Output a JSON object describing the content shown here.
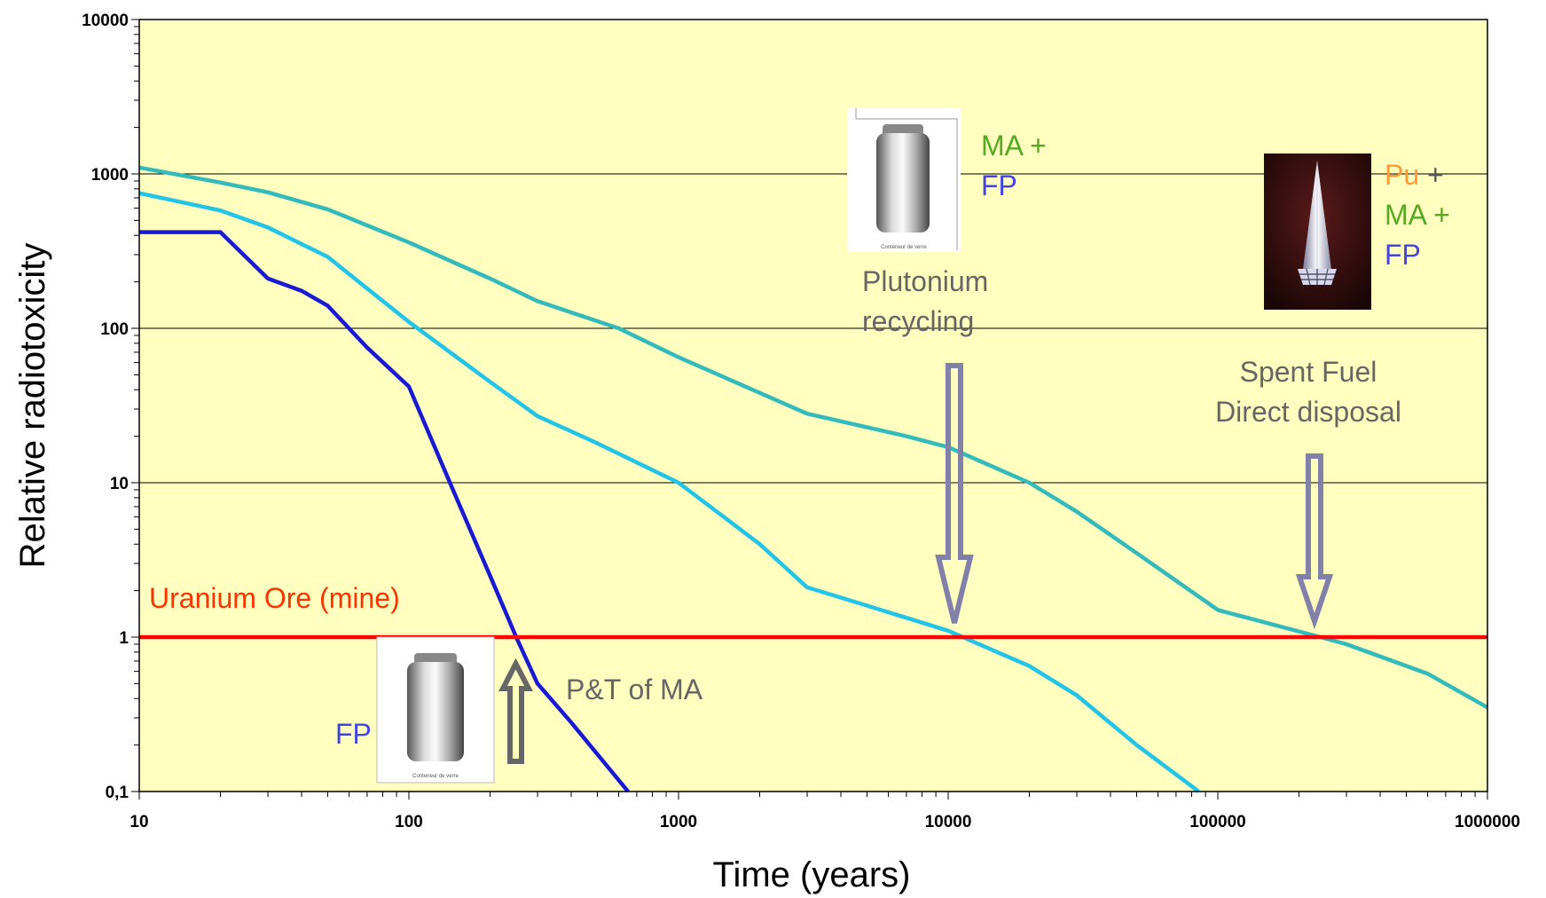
{
  "chart_data": {
    "type": "line",
    "title": "",
    "xlabel": "Time  (years)",
    "ylabel": "Relative radiotoxicity",
    "x_scale": "log",
    "y_scale": "log",
    "xlim": [
      10,
      1000000
    ],
    "ylim": [
      0.1,
      10000
    ],
    "x_ticks": [
      10,
      100,
      1000,
      10000,
      100000,
      1000000
    ],
    "x_tick_labels": [
      "10",
      "100",
      "1000",
      "10000",
      "100000",
      "1000000"
    ],
    "y_ticks": [
      0.1,
      1,
      10,
      100,
      1000,
      10000
    ],
    "y_tick_labels": [
      "0,1",
      "1",
      "10",
      "100",
      "1000",
      "10000"
    ],
    "grid": "horizontal major gridlines",
    "plot_background": "#FFFFC0",
    "series": [
      {
        "name": "Spent Fuel Direct disposal",
        "color": "#33BBBB",
        "points": [
          [
            10,
            1100
          ],
          [
            20,
            880
          ],
          [
            30,
            760
          ],
          [
            50,
            590
          ],
          [
            100,
            360
          ],
          [
            200,
            210
          ],
          [
            300,
            150
          ],
          [
            600,
            100
          ],
          [
            1000,
            65
          ],
          [
            3000,
            28
          ],
          [
            7000,
            20
          ],
          [
            10000,
            17
          ],
          [
            20000,
            10
          ],
          [
            30000,
            6.5
          ],
          [
            50000,
            3.5
          ],
          [
            100000,
            1.5
          ],
          [
            240000,
            1.0
          ],
          [
            300000,
            0.9
          ],
          [
            600000,
            0.58
          ],
          [
            1000000,
            0.35
          ]
        ]
      },
      {
        "name": "Plutonium recycling",
        "color": "#22C4E8",
        "points": [
          [
            10,
            750
          ],
          [
            20,
            580
          ],
          [
            30,
            450
          ],
          [
            50,
            290
          ],
          [
            100,
            110
          ],
          [
            200,
            45
          ],
          [
            300,
            27
          ],
          [
            500,
            18
          ],
          [
            1000,
            10
          ],
          [
            2000,
            4
          ],
          [
            3000,
            2.1
          ],
          [
            5000,
            1.6
          ],
          [
            10000,
            1.1
          ],
          [
            20000,
            0.65
          ],
          [
            30000,
            0.42
          ],
          [
            50000,
            0.2
          ],
          [
            85000,
            0.1
          ]
        ]
      },
      {
        "name": "P&T of MA",
        "color": "#1A1AD2",
        "points": [
          [
            10,
            420
          ],
          [
            20,
            420
          ],
          [
            30,
            210
          ],
          [
            40,
            175
          ],
          [
            50,
            140
          ],
          [
            70,
            75
          ],
          [
            100,
            42
          ],
          [
            150,
            8
          ],
          [
            200,
            2.5
          ],
          [
            250,
            1.0
          ],
          [
            300,
            0.5
          ],
          [
            400,
            0.28
          ],
          [
            650,
            0.1
          ]
        ]
      },
      {
        "name": "Uranium Ore (mine)",
        "color": "#FF0000",
        "points": [
          [
            10,
            1
          ],
          [
            1000000,
            1
          ]
        ]
      }
    ],
    "annotations": [
      {
        "text": "Uranium Ore (mine)",
        "color": "#FF3300"
      },
      {
        "text": "P&T of MA",
        "color": "#666666"
      },
      {
        "text": "Plutonium",
        "color": "#666666"
      },
      {
        "text": "recycling",
        "color": "#666666"
      },
      {
        "text": "Spent Fuel",
        "color": "#666666"
      },
      {
        "text": "Direct disposal",
        "color": "#666666"
      }
    ],
    "legend_labels": {
      "fp_low": {
        "text": "FP",
        "color": "#4444E0"
      },
      "ma_plus": {
        "text": "MA +",
        "color": "#55AA22"
      },
      "fp_mid": {
        "text": "FP",
        "color": "#4444E0"
      },
      "pu": {
        "text": "Pu",
        "color": "#FF9933"
      },
      "plus": {
        "text": " +",
        "color": "#555555"
      },
      "ma_plus_right": {
        "text": "MA +",
        "color": "#55AA22"
      },
      "fp_right": {
        "text": "FP",
        "color": "#4444E0"
      }
    },
    "arrows": [
      {
        "name": "pt-ma-arrow",
        "direction": "up",
        "color": "#666666"
      },
      {
        "name": "plutonium-arrow",
        "direction": "down",
        "color": "#8080A8"
      },
      {
        "name": "spent-fuel-arrow",
        "direction": "down",
        "color": "#8080A8"
      }
    ],
    "images": [
      {
        "name": "glass-canister-image",
        "caption": "Conteneur de verre"
      },
      {
        "name": "glass-canister-image-top",
        "caption": "Conteneur de verre"
      },
      {
        "name": "fuel-assembly-image"
      }
    ]
  }
}
